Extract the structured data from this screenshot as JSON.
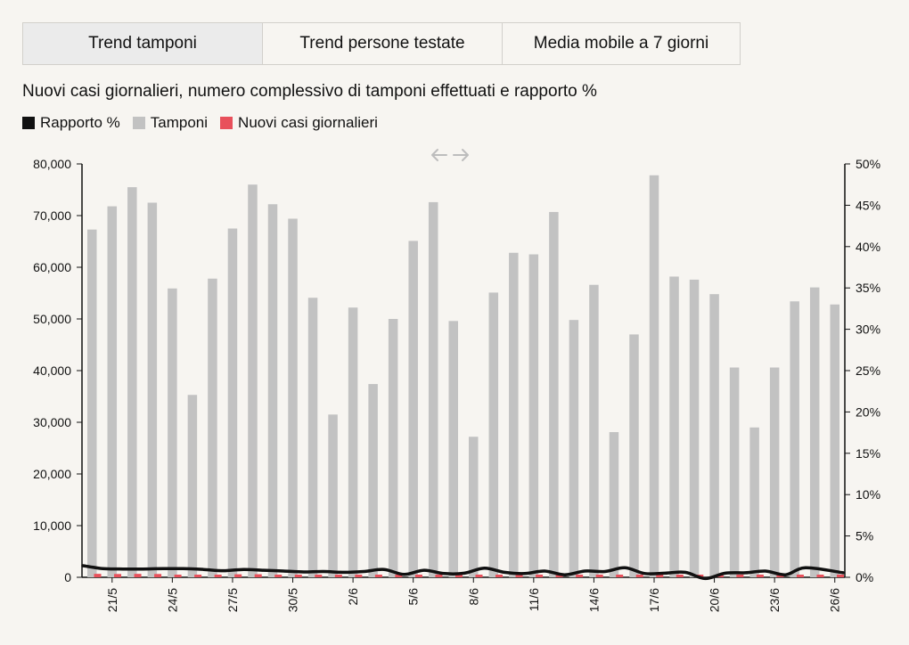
{
  "tabs": [
    {
      "label": "Trend tamponi",
      "active": true
    },
    {
      "label": "Trend persone testate",
      "active": false
    },
    {
      "label": "Media mobile a 7 giorni",
      "active": false
    }
  ],
  "chart_title": "Nuovi casi giornalieri, numero complessivo di tamponi effettuati e rapporto %",
  "legend": [
    {
      "label": "Rapporto %",
      "color": "#111111"
    },
    {
      "label": "Tamponi",
      "color": "#c2c2c2"
    },
    {
      "label": "Nuovi casi giornalieri",
      "color": "#e8505b"
    }
  ],
  "scroll_hint_icon": "horizontal-arrows-icon",
  "chart_data": {
    "type": "bar",
    "title": "Nuovi casi giornalieri, numero complessivo di tamponi effettuati e rapporto %",
    "x_tick_labels": [
      "21/5",
      "24/5",
      "27/5",
      "30/5",
      "2/6",
      "5/6",
      "8/6",
      "11/6",
      "14/6",
      "17/6",
      "20/6",
      "23/6",
      "26/6"
    ],
    "y_left": {
      "min": 0,
      "max": 80000,
      "ticks": [
        "0",
        "10,000",
        "20,000",
        "30,000",
        "40,000",
        "50,000",
        "60,000",
        "70,000",
        "80,000"
      ]
    },
    "y_right": {
      "min": 0,
      "max": 50,
      "ticks": [
        "0%",
        "5%",
        "10%",
        "15%",
        "20%",
        "25%",
        "30%",
        "35%",
        "40%",
        "45%",
        "50%"
      ]
    },
    "series": [
      {
        "name": "Tamponi",
        "color": "#c2c2c2",
        "axis": "left",
        "values": [
          67300,
          71800,
          75500,
          72500,
          55900,
          35300,
          57800,
          67500,
          76000,
          72200,
          69400,
          54100,
          31500,
          52200,
          37400,
          50000,
          65100,
          72600,
          49600,
          27200,
          55100,
          62800,
          62500,
          70700,
          49800,
          56600,
          28100,
          47000,
          77800,
          58200,
          57600,
          54800,
          40600,
          29000,
          40600,
          53400,
          56100,
          52800
        ]
      },
      {
        "name": "Nuovi casi giornalieri",
        "color": "#e8505b",
        "axis": "left",
        "values": [
          669,
          640,
          665,
          642,
          516,
          300,
          397,
          584,
          593,
          516,
          416,
          355,
          178,
          283,
          321,
          197,
          518,
          379,
          280,
          202,
          283,
          379,
          304,
          407,
          338,
          331,
          210,
          301,
          333,
          251,
          263,
          224,
          190,
          122,
          201,
          296,
          259,
          188
        ]
      },
      {
        "name": "Rapporto %",
        "color": "#111111",
        "axis": "right",
        "values": [
          1.4,
          1.05,
          1.0,
          1.0,
          1.05,
          1.05,
          0.95,
          0.8,
          0.95,
          0.85,
          0.75,
          0.65,
          0.7,
          0.6,
          0.7,
          0.95,
          0.35,
          0.85,
          0.45,
          0.5,
          1.1,
          0.6,
          0.45,
          0.75,
          0.3,
          0.75,
          0.7,
          1.15,
          0.45,
          0.5,
          0.6,
          -0.15,
          0.5,
          0.55,
          0.75,
          0.3,
          1.15,
          0.55
        ]
      }
    ],
    "grid": false,
    "legend_position": "top-left"
  }
}
